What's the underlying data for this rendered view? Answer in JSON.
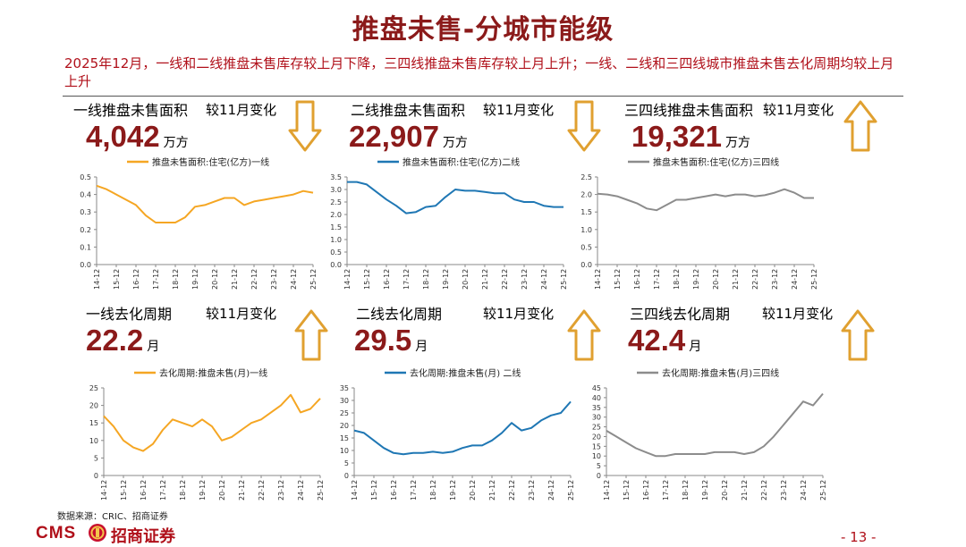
{
  "page": {
    "title": "推盘未售-分城市能级",
    "summary": "2025年12月，一线和二线推盘未售库存较上月下降，三四线推盘未售库存较上月上升；一线、二线和三四线城市推盘未售去化周期均较上月上升",
    "source": "数据来源：CRIC、招商证券",
    "logo_text": "CMS",
    "logo_name": "招商证券",
    "page_number": "- 13 -",
    "compare_label": "较11月变化"
  },
  "panels": [
    {
      "name": "一线推盘未售面积",
      "value": "4,042",
      "unit": "万方",
      "arrow": "down"
    },
    {
      "name": "二线推盘未售面积",
      "value": "22,907",
      "unit": "万方",
      "arrow": "down"
    },
    {
      "name": "三四线推盘未售面积",
      "value": "19,321",
      "unit": "万方",
      "arrow": "up"
    },
    {
      "name": "一线去化周期",
      "value": "22.2",
      "unit": "月",
      "arrow": "up"
    },
    {
      "name": "二线去化周期",
      "value": "29.5",
      "unit": "月",
      "arrow": "up"
    },
    {
      "name": "三四线去化周期",
      "value": "42.4",
      "unit": "月",
      "arrow": "up"
    }
  ],
  "colors": {
    "tier1": "#f5a623",
    "tier2": "#1f77b4",
    "tier34": "#8c8c8c",
    "arrow": "#e0a030",
    "title": "#8b1a1a"
  },
  "chart_data": [
    {
      "type": "line",
      "legend": "推盘未售面积:住宅(亿方)一线",
      "x_ticks": [
        "14-12",
        "15-12",
        "16-12",
        "17-12",
        "18-12",
        "19-12",
        "20-12",
        "21-12",
        "22-12",
        "23-12",
        "24-12",
        "25-12"
      ],
      "ylim": [
        0,
        0.5
      ],
      "yticks": [
        "0.0",
        "0.1",
        "0.2",
        "0.3",
        "0.4",
        "0.5"
      ],
      "x": [
        0,
        0.5,
        1,
        1.5,
        2,
        2.5,
        3,
        3.5,
        4,
        4.5,
        5,
        5.5,
        6,
        6.5,
        7,
        7.5,
        8,
        8.5,
        9,
        9.5,
        10,
        10.5,
        11
      ],
      "y": [
        0.45,
        0.43,
        0.4,
        0.37,
        0.34,
        0.28,
        0.24,
        0.24,
        0.24,
        0.27,
        0.33,
        0.34,
        0.36,
        0.38,
        0.38,
        0.34,
        0.36,
        0.37,
        0.38,
        0.39,
        0.4,
        0.42,
        0.41
      ]
    },
    {
      "type": "line",
      "legend": "推盘未售面积:住宅(亿方)二线",
      "x_ticks": [
        "14-12",
        "15-12",
        "16-12",
        "17-12",
        "18-12",
        "19-12",
        "20-12",
        "21-12",
        "22-12",
        "23-12",
        "24-12",
        "25-12"
      ],
      "ylim": [
        0,
        3.5
      ],
      "yticks": [
        "0.0",
        "0.5",
        "1.0",
        "1.5",
        "2.0",
        "2.5",
        "3.0",
        "3.5"
      ],
      "x": [
        0,
        0.5,
        1,
        1.5,
        2,
        2.5,
        3,
        3.5,
        4,
        4.5,
        5,
        5.5,
        6,
        6.5,
        7,
        7.5,
        8,
        8.5,
        9,
        9.5,
        10,
        10.5,
        11
      ],
      "y": [
        3.3,
        3.3,
        3.2,
        2.9,
        2.6,
        2.35,
        2.05,
        2.1,
        2.3,
        2.35,
        2.7,
        3.0,
        2.95,
        2.95,
        2.9,
        2.85,
        2.85,
        2.6,
        2.5,
        2.5,
        2.35,
        2.3,
        2.3
      ]
    },
    {
      "type": "line",
      "legend": "推盘未售面积:住宅(亿方)三四线",
      "x_ticks": [
        "14-12",
        "15-12",
        "16-12",
        "17-12",
        "18-12",
        "19-12",
        "20-12",
        "21-12",
        "22-12",
        "23-12",
        "24-12",
        "25-12"
      ],
      "ylim": [
        0,
        2.5
      ],
      "yticks": [
        "0.0",
        "0.5",
        "1.0",
        "1.5",
        "2.0",
        "2.5"
      ],
      "x": [
        0,
        0.5,
        1,
        1.5,
        2,
        2.5,
        3,
        3.5,
        4,
        4.5,
        5,
        5.5,
        6,
        6.5,
        7,
        7.5,
        8,
        8.5,
        9,
        9.5,
        10,
        10.5,
        11
      ],
      "y": [
        2.02,
        2.0,
        1.95,
        1.85,
        1.75,
        1.6,
        1.55,
        1.7,
        1.85,
        1.85,
        1.9,
        1.95,
        2.0,
        1.95,
        2.0,
        2.0,
        1.95,
        1.98,
        2.05,
        2.15,
        2.05,
        1.9,
        1.9
      ]
    },
    {
      "type": "line",
      "legend": "去化周期:推盘未售(月)一线",
      "x_ticks": [
        "14-12",
        "15-12",
        "16-12",
        "17-12",
        "18-12",
        "19-12",
        "20-12",
        "21-12",
        "22-12",
        "23-12",
        "24-12",
        "25-12"
      ],
      "ylim": [
        0,
        25
      ],
      "yticks": [
        "0",
        "5",
        "10",
        "15",
        "20",
        "25"
      ],
      "x": [
        0,
        0.5,
        1,
        1.5,
        2,
        2.5,
        3,
        3.5,
        4,
        4.5,
        5,
        5.5,
        6,
        6.5,
        7,
        7.5,
        8,
        8.5,
        9,
        9.5,
        10,
        10.5,
        11
      ],
      "y": [
        17,
        14,
        10,
        8,
        7,
        9,
        13,
        16,
        15,
        14,
        16,
        14,
        10,
        11,
        13,
        15,
        16,
        18,
        20,
        23,
        18,
        19,
        22
      ]
    },
    {
      "type": "line",
      "legend": "去化周期:推盘未售(月) 二线",
      "x_ticks": [
        "14-12",
        "15-12",
        "16-12",
        "17-12",
        "18-12",
        "19-12",
        "20-12",
        "21-12",
        "22-12",
        "23-12",
        "24-12",
        "25-12"
      ],
      "ylim": [
        0,
        35
      ],
      "yticks": [
        "0",
        "5",
        "10",
        "15",
        "20",
        "25",
        "30",
        "35"
      ],
      "x": [
        0,
        0.5,
        1,
        1.5,
        2,
        2.5,
        3,
        3.5,
        4,
        4.5,
        5,
        5.5,
        6,
        6.5,
        7,
        7.5,
        8,
        8.5,
        9,
        9.5,
        10,
        10.5,
        11
      ],
      "y": [
        18,
        17,
        14,
        11,
        9,
        8.5,
        9,
        9,
        9.5,
        9,
        9.5,
        11,
        12,
        12,
        14,
        17,
        21,
        18,
        19,
        22,
        24,
        25,
        29.5
      ]
    },
    {
      "type": "line",
      "legend": "去化周期:推盘未售(月)三四线",
      "x_ticks": [
        "14-12",
        "15-12",
        "16-12",
        "17-12",
        "18-12",
        "19-12",
        "20-12",
        "21-12",
        "22-12",
        "23-12",
        "24-12",
        "25-12"
      ],
      "ylim": [
        0,
        45
      ],
      "yticks": [
        "0",
        "5",
        "10",
        "15",
        "20",
        "25",
        "30",
        "35",
        "40",
        "45"
      ],
      "x": [
        0,
        0.5,
        1,
        1.5,
        2,
        2.5,
        3,
        3.5,
        4,
        4.5,
        5,
        5.5,
        6,
        6.5,
        7,
        7.5,
        8,
        8.5,
        9,
        9.5,
        10,
        10.5,
        11
      ],
      "y": [
        23,
        20,
        17,
        14,
        12,
        10,
        10,
        11,
        11,
        11,
        11,
        12,
        12,
        12,
        11,
        12,
        15,
        20,
        26,
        32,
        38,
        36,
        42
      ]
    }
  ]
}
